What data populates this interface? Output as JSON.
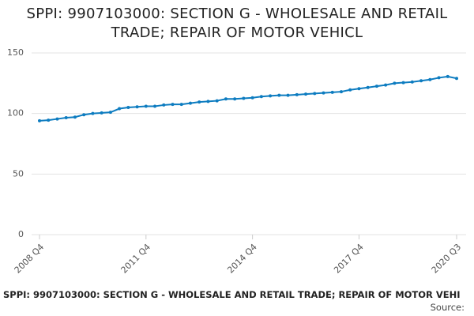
{
  "chart_data": {
    "type": "line",
    "title": "SPPI: 9907103000: SECTION G - WHOLESALE AND RETAIL TRADE; REPAIR OF MOTOR VEHICL",
    "footer": "SPPI: 9907103000: SECTION G - WHOLESALE AND RETAIL TRADE; REPAIR OF MOTOR VEHI",
    "source": "Source:",
    "categories": [
      "2008 Q4",
      null,
      null,
      null,
      null,
      null,
      null,
      null,
      null,
      null,
      null,
      null,
      "2011 Q4",
      null,
      null,
      null,
      null,
      null,
      null,
      null,
      null,
      null,
      null,
      null,
      "2014 Q4",
      null,
      null,
      null,
      null,
      null,
      null,
      null,
      null,
      null,
      null,
      null,
      "2017 Q4",
      null,
      null,
      null,
      null,
      null,
      null,
      null,
      null,
      null,
      null,
      "2020 Q3"
    ],
    "series": [
      {
        "color": "#0d7cc0",
        "values": [
          94,
          94.5,
          95.5,
          96.5,
          97,
          99,
          100,
          100.5,
          101,
          104,
          105,
          105.5,
          106,
          106,
          107,
          107.5,
          107.5,
          108.5,
          109.5,
          110,
          110.5,
          112,
          112,
          112.5,
          113,
          114,
          114.5,
          115,
          115,
          115.5,
          116,
          116.5,
          117,
          117.5,
          118,
          119.5,
          120.5,
          121.5,
          122.5,
          123.5,
          125,
          125.5,
          126,
          127,
          128,
          129.5,
          130.5,
          129
        ]
      }
    ],
    "ylim": [
      0,
      150
    ],
    "yticks": [
      0,
      50,
      100,
      150
    ],
    "grid": true
  }
}
